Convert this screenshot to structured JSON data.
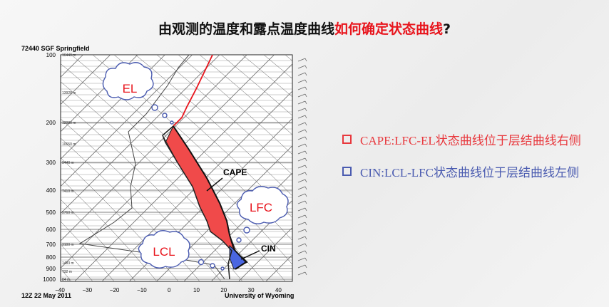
{
  "title": {
    "part1": "由观测的温度和露点温度曲线",
    "part2": "如何确定状态曲线",
    "part3": "?"
  },
  "diagram": {
    "station": "72440 SGF Springfield",
    "pressure_labels": [
      "100",
      "200",
      "300",
      "400",
      "500",
      "600",
      "700",
      "800",
      "900",
      "1000"
    ],
    "height_labels": [
      "16440 m",
      "13928 m",
      "12080 m",
      "10650 m",
      "9440 m",
      "7410 m",
      "5760 m",
      "3100 m",
      "1483 m",
      "732 m",
      "84 m"
    ],
    "temperature_labels": [
      "−40",
      "−30",
      "−20",
      "−10",
      "0",
      "10",
      "20",
      "30",
      "40"
    ],
    "footer_left": "12Z 22 May 2011",
    "footer_right": "University of Wyoming",
    "annotations": {
      "el": "EL",
      "lfc": "LFC",
      "lcl": "LCL",
      "cape": "CAPE",
      "cin": "CIN"
    }
  },
  "bullets": [
    "CAPE:LFC-EL状态曲线位于层结曲线右侧",
    "CIN:LCL-LFC状态曲线位于层结曲线左侧"
  ]
}
